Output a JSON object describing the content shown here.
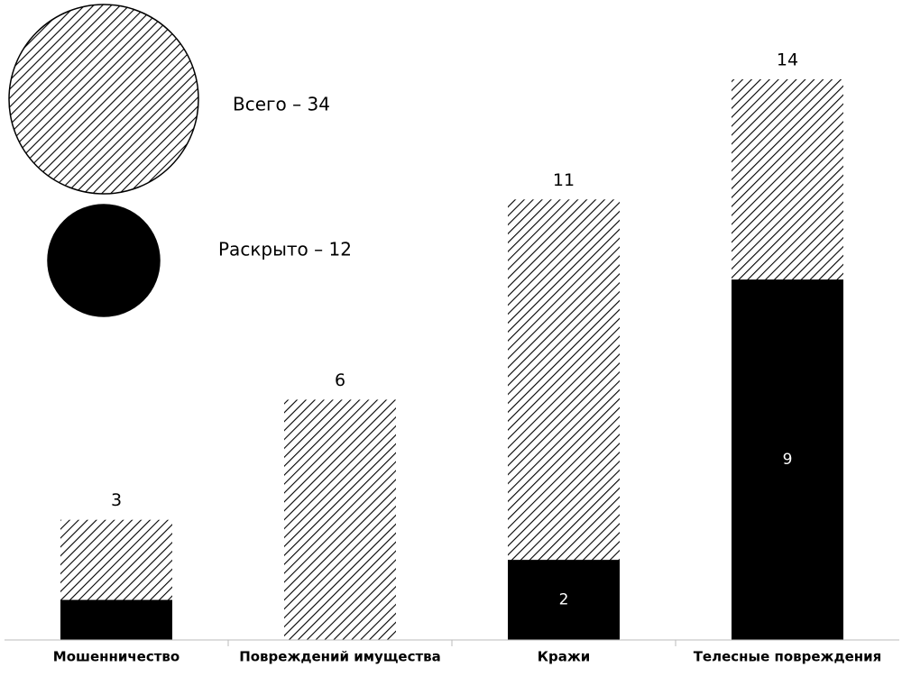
{
  "chart_data": {
    "type": "bar",
    "categories": [
      "Мошенничество",
      "Повреждений имущества",
      "Кражи",
      "Телесные повреждения"
    ],
    "series": [
      {
        "name": "Всего – 34",
        "color": "#000000",
        "hatch": true,
        "values": [
          3,
          6,
          11,
          14
        ]
      },
      {
        "name": "Раскрыто – 12",
        "color": "#000000",
        "hatch": false,
        "values": [
          1,
          0,
          2,
          9
        ],
        "value_labels": [
          null,
          null,
          "2",
          "9"
        ]
      }
    ],
    "ylim": [
      0,
      14
    ]
  }
}
